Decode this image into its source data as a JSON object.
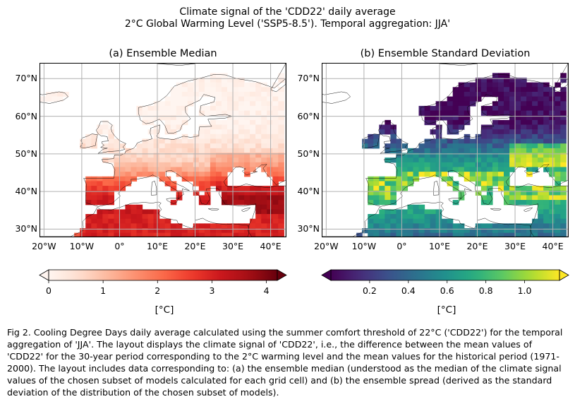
{
  "figure": {
    "title_line1": "Climate signal of the 'CDD22' daily average",
    "title_line2": "2°C Global Warming Level ('SSP5-8.5'). Temporal aggregation: JJA'",
    "caption": "Fig 2. Cooling Degree Days daily average calculated using the summer comfort threshold of 22°C ('CDD22') for the temporal aggregation of 'JJA'. The layout displays the climate signal of 'CDD22', i.e., the difference between the mean values of 'CDD22' for the 30-year period corresponding to the 2°C warming level and the mean values for the historical period (1971-2000). The layout includes data corresponding to: (a) the ensemble median (understood as the median of the climate signal values of the chosen subset of models calculated for each grid cell) and (b) the ensemble spread (derived as the standard deviation of the distribution of the chosen subset of models)."
  },
  "chart_data": [
    {
      "type": "heatmap",
      "title": "(a) Ensemble Median",
      "lon_range": [
        -21,
        44
      ],
      "lat_range": [
        28,
        74
      ],
      "x_ticks": [
        "20°W",
        "10°W",
        "0°",
        "10°E",
        "20°E",
        "30°E",
        "40°E"
      ],
      "x_tick_values": [
        -20,
        -10,
        0,
        10,
        20,
        30,
        40
      ],
      "y_ticks": [
        "30°N",
        "40°N",
        "50°N",
        "60°N",
        "70°N"
      ],
      "y_tick_values": [
        30,
        40,
        50,
        60,
        70
      ],
      "colormap": "Reds",
      "colorbar": {
        "label": "[°C]",
        "range": [
          0,
          4.2
        ],
        "ticks": [
          "0",
          "1",
          "2",
          "3",
          "4"
        ],
        "tick_values": [
          0,
          1,
          2,
          3,
          4
        ],
        "extend": "both"
      },
      "values_description": "Near 0 over northern Europe, ~0.5–1.5 over central Europe, ~2–3.5 over the Mediterranean, North Africa and Turkey"
    },
    {
      "type": "heatmap",
      "title": "(b) Ensemble Standard Deviation",
      "lon_range": [
        -21,
        44
      ],
      "lat_range": [
        28,
        74
      ],
      "x_ticks": [
        "20°W",
        "10°W",
        "0°",
        "10°E",
        "20°E",
        "30°E",
        "40°E"
      ],
      "x_tick_values": [
        -20,
        -10,
        0,
        10,
        20,
        30,
        40
      ],
      "y_ticks": [
        "30°N",
        "40°N",
        "50°N",
        "60°N",
        "70°N"
      ],
      "y_tick_values": [
        30,
        40,
        50,
        60,
        70
      ],
      "colormap": "viridis",
      "colorbar": {
        "label": "[°C]",
        "range": [
          0,
          1.18
        ],
        "ticks": [
          "0.2",
          "0.4",
          "0.6",
          "0.8",
          "1.0"
        ],
        "tick_values": [
          0.2,
          0.4,
          0.6,
          0.8,
          1.0
        ],
        "extend": "both"
      },
      "values_description": "~0.05 over northern Europe, ~0.4–0.7 over central/southern Europe, up to ~1.1 around the Mediterranean and east of the Black Sea"
    }
  ],
  "colors": {
    "grid": "#b0b0b0",
    "coast": "#000000",
    "ocean": "#ffffff"
  }
}
